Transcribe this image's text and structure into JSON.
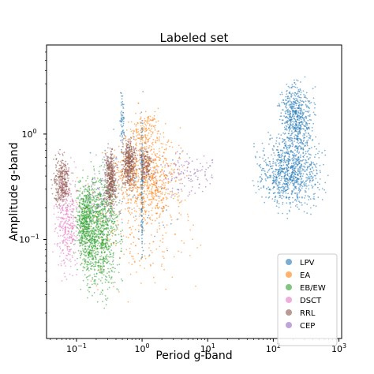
{
  "chart_data": {
    "type": "scatter",
    "title": "Labeled set",
    "xlabel": "Period g-band",
    "ylabel": "Amplitude g-band",
    "xscale": "log",
    "yscale": "log",
    "xlim": [
      0.035,
      1100
    ],
    "ylim": [
      0.0115,
      7
    ],
    "x_ticks": [
      {
        "value": 0.1,
        "base": "10",
        "exp": "−1"
      },
      {
        "value": 1,
        "base": "10",
        "exp": "0"
      },
      {
        "value": 10,
        "base": "10",
        "exp": "1"
      },
      {
        "value": 100,
        "base": "10",
        "exp": "2"
      },
      {
        "value": 1000,
        "base": "10",
        "exp": "3"
      }
    ],
    "y_ticks": [
      {
        "value": 0.1,
        "base": "10",
        "exp": "−1"
      },
      {
        "value": 1,
        "base": "10",
        "exp": "0"
      }
    ],
    "legend_position": "bottom-right",
    "series": [
      {
        "name": "LPV",
        "color": "#1f77b4",
        "clusters": [
          {
            "x_range": [
              40,
              800
            ],
            "y_range": [
              0.15,
              1.2
            ],
            "n": 900
          },
          {
            "x_range": [
              100,
              500
            ],
            "y_range": [
              0.5,
              4.0
            ],
            "n": 600
          },
          {
            "x_range": [
              0.45,
              0.55
            ],
            "y_range": [
              0.5,
              3.5
            ],
            "n": 60
          },
          {
            "x_range": [
              0.95,
              1.05
            ],
            "y_range": [
              0.03,
              4.0
            ],
            "n": 150
          },
          {
            "x_range": [
              0.05,
              10
            ],
            "y_range": [
              0.03,
              1.5
            ],
            "n": 60
          }
        ]
      },
      {
        "name": "EA",
        "color": "#ff7f0e",
        "clusters": [
          {
            "x_range": [
              0.25,
              6
            ],
            "y_range": [
              0.1,
              1.5
            ],
            "n": 700
          },
          {
            "x_range": [
              0.5,
              2.5
            ],
            "y_range": [
              0.6,
              2.0
            ],
            "n": 150
          },
          {
            "x_range": [
              0.05,
              15
            ],
            "y_range": [
              0.02,
              1.0
            ],
            "n": 250
          }
        ]
      },
      {
        "name": "EB/EW",
        "color": "#2ca02c",
        "clusters": [
          {
            "x_range": [
              0.08,
              0.6
            ],
            "y_range": [
              0.02,
              0.7
            ],
            "n": 1100
          },
          {
            "x_range": [
              0.09,
              0.2
            ],
            "y_range": [
              0.05,
              0.5
            ],
            "n": 400
          }
        ]
      },
      {
        "name": "DSCT",
        "color": "#e377c2",
        "clusters": [
          {
            "x_range": [
              0.04,
              0.13
            ],
            "y_range": [
              0.03,
              0.8
            ],
            "n": 350
          }
        ]
      },
      {
        "name": "RRL",
        "color": "#8c564b",
        "clusters": [
          {
            "x_range": [
              0.04,
              0.09
            ],
            "y_range": [
              0.15,
              0.8
            ],
            "n": 300
          },
          {
            "x_range": [
              0.25,
              0.45
            ],
            "y_range": [
              0.15,
              0.9
            ],
            "n": 400
          },
          {
            "x_range": [
              0.45,
              0.9
            ],
            "y_range": [
              0.25,
              1.1
            ],
            "n": 400
          },
          {
            "x_range": [
              0.8,
              1.6
            ],
            "y_range": [
              0.3,
              0.9
            ],
            "n": 150
          }
        ]
      },
      {
        "name": "CEP",
        "color": "#9467bd",
        "clusters": [
          {
            "x_range": [
              1.0,
              20
            ],
            "y_range": [
              0.2,
              0.9
            ],
            "n": 120
          },
          {
            "x_range": [
              0.1,
              0.6
            ],
            "y_range": [
              0.1,
              0.8
            ],
            "n": 80
          }
        ]
      }
    ]
  }
}
